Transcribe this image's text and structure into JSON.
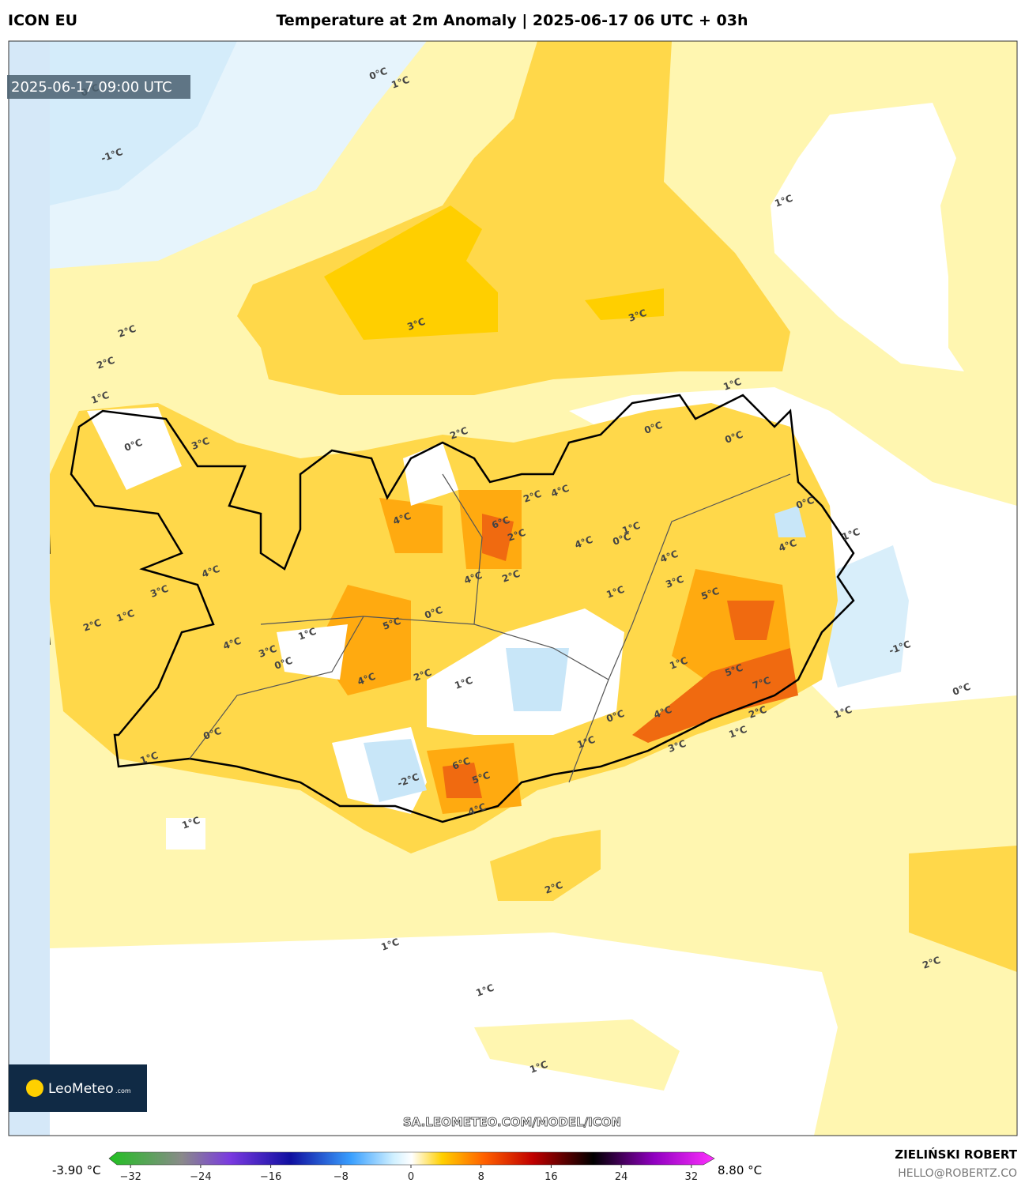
{
  "header": {
    "model": "ICON EU",
    "title": "Temperature at 2m Anomaly | 2025-06-17 06 UTC + 03h"
  },
  "timestamp": "2025-06-17 09:00 UTC",
  "contour_labels": [
    "0°C",
    "1°C",
    "0°C",
    "-1°C",
    "1°C",
    "3°C",
    "3°C",
    "2°C",
    "2°C",
    "1°C",
    "1°C",
    "0°C",
    "0°C",
    "0°C",
    "2°C",
    "3°C",
    "4°C",
    "2°C",
    "6°C",
    "4°C",
    "0°C",
    "1°C",
    "4°C",
    "2°C",
    "0°C",
    "4°C",
    "1°C",
    "4°C",
    "3°C",
    "5°C",
    "2°C",
    "4°C",
    "0°C",
    "1°C",
    "4°C",
    "3°C",
    "2°C",
    "1°C",
    "4°C",
    "3°C",
    "1°C",
    "0°C",
    "5°C",
    "4°C",
    "2°C",
    "1°C",
    "1°C",
    "-1°C",
    "5°C",
    "7°C",
    "0°C",
    "1°C",
    "2°C",
    "4°C",
    "1°C",
    "6°C",
    "5°C",
    "4°C",
    "-2°C",
    "0°C",
    "1°C",
    "3°C",
    "0°C",
    "1°C",
    "1°C",
    "2°C",
    "1°C",
    "1°C",
    "2°C",
    "1°C"
  ],
  "watermark": "SA.LEOMETEO.COM/MODEL/ICON",
  "logo": {
    "name": "LeoMeteo",
    "suffix": ".com"
  },
  "colorbar": {
    "lim": [
      -34,
      34
    ],
    "min_label": "-3.90 °C",
    "max_label": "8.80 °C",
    "ticks": [
      {
        "value": -32,
        "label": "−32"
      },
      {
        "value": -24,
        "label": "−24"
      },
      {
        "value": -16,
        "label": "−16"
      },
      {
        "value": -8,
        "label": "−8"
      },
      0,
      8,
      16,
      24,
      32
    ]
  },
  "credits": {
    "author": "ZIELIŃSKI ROBERT",
    "email": "HELLO@ROBERTZ.CO"
  }
}
